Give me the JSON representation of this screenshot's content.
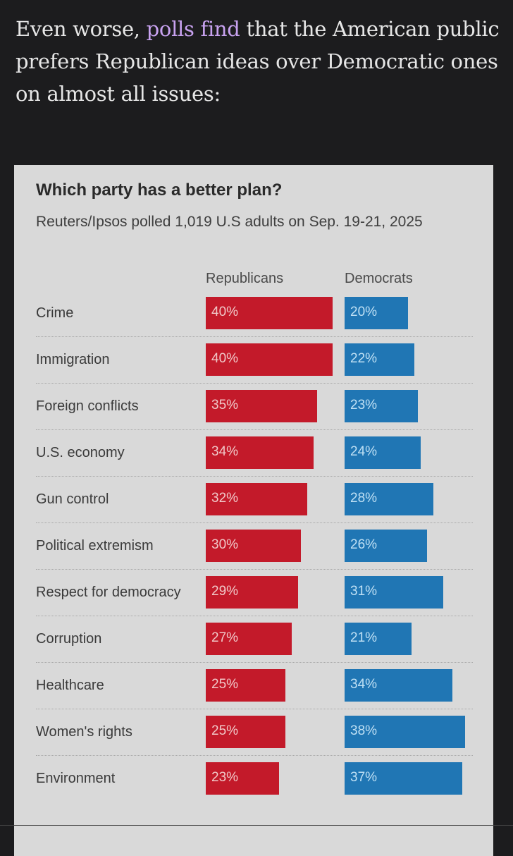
{
  "intro": {
    "before": "Even worse, ",
    "link": "polls find",
    "after": " that the American public prefers Republican ideas over Democratic ones on almost all issues:"
  },
  "chart_data": {
    "type": "bar",
    "title": "Which party has a better plan?",
    "subtitle": "Reuters/Ipsos polled 1,019 U.S adults on Sep. 19-21, 2025",
    "categories": [
      "Crime",
      "Immigration",
      "Foreign conflicts",
      "U.S. economy",
      "Gun control",
      "Political extremism",
      "Respect for democracy",
      "Corruption",
      "Healthcare",
      "Women's rights",
      "Environment"
    ],
    "series": [
      {
        "name": "Republicans",
        "values": [
          40,
          40,
          35,
          34,
          32,
          30,
          29,
          27,
          25,
          25,
          23
        ],
        "color": "#c31a2a"
      },
      {
        "name": "Democrats",
        "values": [
          20,
          22,
          23,
          24,
          28,
          26,
          31,
          21,
          34,
          38,
          37
        ],
        "color": "#2076b4"
      }
    ],
    "value_suffix": "%",
    "grid": false,
    "legend": "top"
  }
}
